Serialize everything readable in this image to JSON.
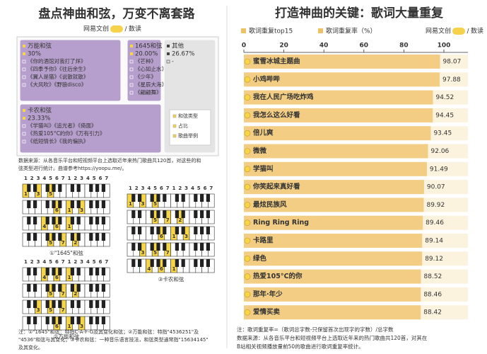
{
  "left": {
    "title": "盘点神曲和弦，万变不离套路",
    "credit_brand": "网易文创",
    "credit_column": "数读",
    "source": [
      "数据来源：从各音乐平台和短视频平台上选取近年来热门歌曲共120首，对这些的和",
      "弦类型进行统计。曲谱参考https://yoopu.me/。"
    ],
    "notes": [
      "注：①\"1645\"和弦：特指C-A-F-G及其变化和弦；②万能和弦：特指\"4536251\"及",
      "\"4536\"和弦与其变化；③卡农和弦：一种音乐语言技法，和弦类型通常指\"15634145\"",
      "及其变化。"
    ]
  },
  "piano": {
    "scale": [
      "1",
      "2",
      "3",
      "4",
      "5",
      "6",
      "7",
      "1",
      "2",
      "3",
      "4",
      "5",
      "6",
      "7"
    ],
    "diagrams": [
      {
        "caption": "①\"1645\"和弦",
        "chords": [
          [
            "1",
            "3",
            "5"
          ],
          [
            "6",
            "1",
            "3"
          ],
          [
            "4",
            "6",
            "1"
          ],
          [
            "5",
            "7",
            "2"
          ]
        ]
      },
      {
        "caption": "②万能和弦",
        "chords": [
          [
            "4",
            "6",
            "1"
          ],
          [
            "5",
            "7",
            "2"
          ],
          [
            "3",
            "5",
            "7"
          ],
          [
            "6",
            "1",
            "3"
          ]
        ]
      },
      {
        "caption": "③卡农和弦",
        "chords": [
          [
            "1",
            "3",
            "5"
          ],
          [
            "5",
            "7",
            "2"
          ],
          [
            "6",
            "1",
            "3"
          ],
          [
            "3",
            "5",
            "7"
          ],
          [
            "4",
            "6",
            "1"
          ]
        ]
      }
    ]
  },
  "chart_data": [
    {
      "type": "treemap",
      "unit_legend": [
        "和弦类型",
        "占比",
        "歌曲举例"
      ],
      "items": [
        {
          "name": "万能和弦",
          "value": 30,
          "value_label": "30%",
          "color": "#b79fcd",
          "songs": [
            "《你的酒馆对我打了烊》",
            "《四季予你》《往后余生》",
            "《翼人是猫》《说散就散》",
            "《大风吹》《野狼disco》"
          ]
        },
        {
          "name": "1645和弦",
          "value": 20,
          "value_label": "20.00%",
          "color": "#b79fcd",
          "songs": [
            "《芒种》",
            "《心如止水》",
            "《少年》",
            "《星辰大海》",
            "《翩翩舞》"
          ]
        },
        {
          "name": "卡农和弦",
          "value": 23.33,
          "value_label": "23.33%",
          "color": "#b79fcd",
          "songs": [
            "《学猫叫》《追光者》《倚面》",
            "《热爱105°C的你》《万有引力》",
            "《纸短情长》《我的偏执》"
          ]
        },
        {
          "name": "其他",
          "value": 26.67,
          "value_label": "26.67%",
          "color": "#e4e4e4",
          "songs": [
            "-"
          ]
        }
      ]
    },
    {
      "type": "bar",
      "title": "打造神曲的关键：歌词大量重复",
      "legend_title": "歌词重复top15",
      "axis_label": "歌词重复率（%）",
      "credit_brand": "网易文创",
      "credit_column": "数读",
      "categories": [
        "蜜雪冰城主题曲",
        "小鸡哔哔",
        "我在人民广场吃炸鸡",
        "我怎么这么好看",
        "倍儿爽",
        "微微",
        "学猫叫",
        "你笑起来真好看",
        "最炫民族风",
        "Ring Ring Ring",
        "卡路里",
        "绿色",
        "热爱105°C的你",
        "那年·年少",
        "爱情买卖"
      ],
      "values": [
        98.07,
        97.88,
        94.52,
        94.45,
        93.45,
        92.06,
        91.49,
        90.07,
        89.92,
        89.46,
        89.14,
        89.12,
        88.52,
        88.46,
        88.42
      ],
      "color": "#efc064",
      "xlim": [
        0,
        100
      ],
      "xticks": [
        0,
        20,
        40,
        60,
        80,
        100
      ],
      "notes": [
        "注：歌词重复率=（歌词总字数-只保留首次出现字的字数）/总字数",
        "数据来源：从各音乐平台和短视频平台上选取近年来的热门歌曲共120首，对其在",
        "B站相关视频播放量前50的歌曲进行歌词重复率统计。"
      ]
    }
  ]
}
